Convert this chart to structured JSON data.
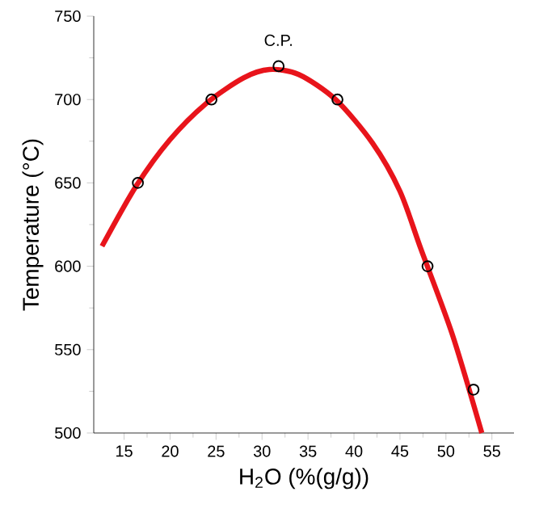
{
  "chart_data": {
    "type": "scatter",
    "xlabel": "H$_{2}$O (%(g/g))",
    "ylabel": "Temperature (°C)",
    "xlim": [
      11.7,
      57.4
    ],
    "ylim": [
      500,
      750
    ],
    "xticks": [
      15,
      20,
      25,
      30,
      35,
      40,
      45,
      50,
      55
    ],
    "yticks": [
      500,
      550,
      600,
      650,
      700,
      750
    ],
    "grid": false,
    "annotations": [
      {
        "text": "C.P.",
        "x": 31.8,
        "y": 720
      }
    ],
    "series": [
      {
        "marker": "circle",
        "color": "#000000",
        "x": [
          16.5,
          24.5,
          31.8,
          38.2,
          48,
          53
        ],
        "values": [
          650,
          700,
          720,
          700,
          600,
          526
        ]
      },
      {
        "type": "line",
        "marker": "none",
        "line_style": "solid",
        "color": "#e8141b",
        "x": [
          12.6,
          16.3,
          20,
          24,
          28,
          30.8,
          34,
          38,
          42,
          45,
          47.3,
          50.7,
          53.9
        ],
        "values": [
          612,
          648,
          676,
          698,
          713,
          718,
          715,
          700,
          674,
          645,
          610,
          559,
          500
        ]
      }
    ]
  }
}
